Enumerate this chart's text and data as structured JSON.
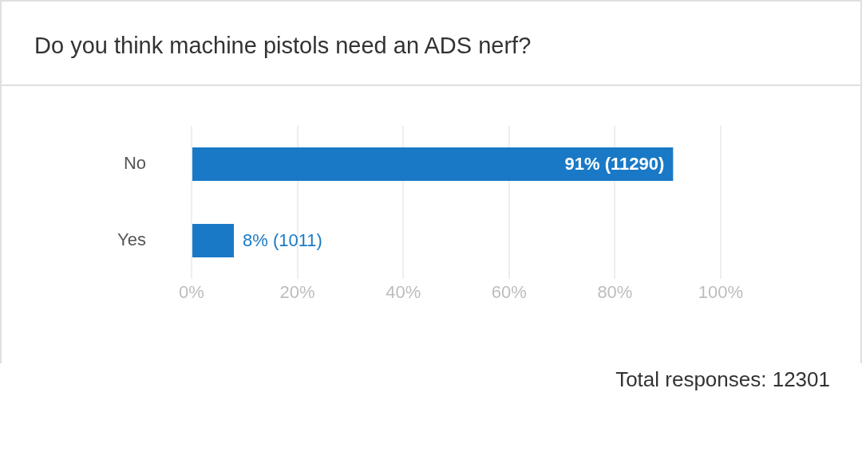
{
  "chart_data": {
    "type": "bar",
    "orientation": "horizontal",
    "title": "Do you think machine pistols need an ADS nerf?",
    "categories": [
      "No",
      "Yes"
    ],
    "values": [
      91,
      8
    ],
    "color": "#1979c6",
    "value_labels": [
      "91% (11290)",
      "8% (1011)"
    ],
    "xlim": [
      0,
      100
    ],
    "xticks": [
      {
        "value": 0,
        "label": "0%"
      },
      {
        "value": 20,
        "label": "20%"
      },
      {
        "value": 40,
        "label": "40%"
      },
      {
        "value": 60,
        "label": "60%"
      },
      {
        "value": 80,
        "label": "80%"
      },
      {
        "value": 100,
        "label": "100%"
      }
    ],
    "grid": "x",
    "annotations": [
      "Total responses: 12301"
    ]
  }
}
